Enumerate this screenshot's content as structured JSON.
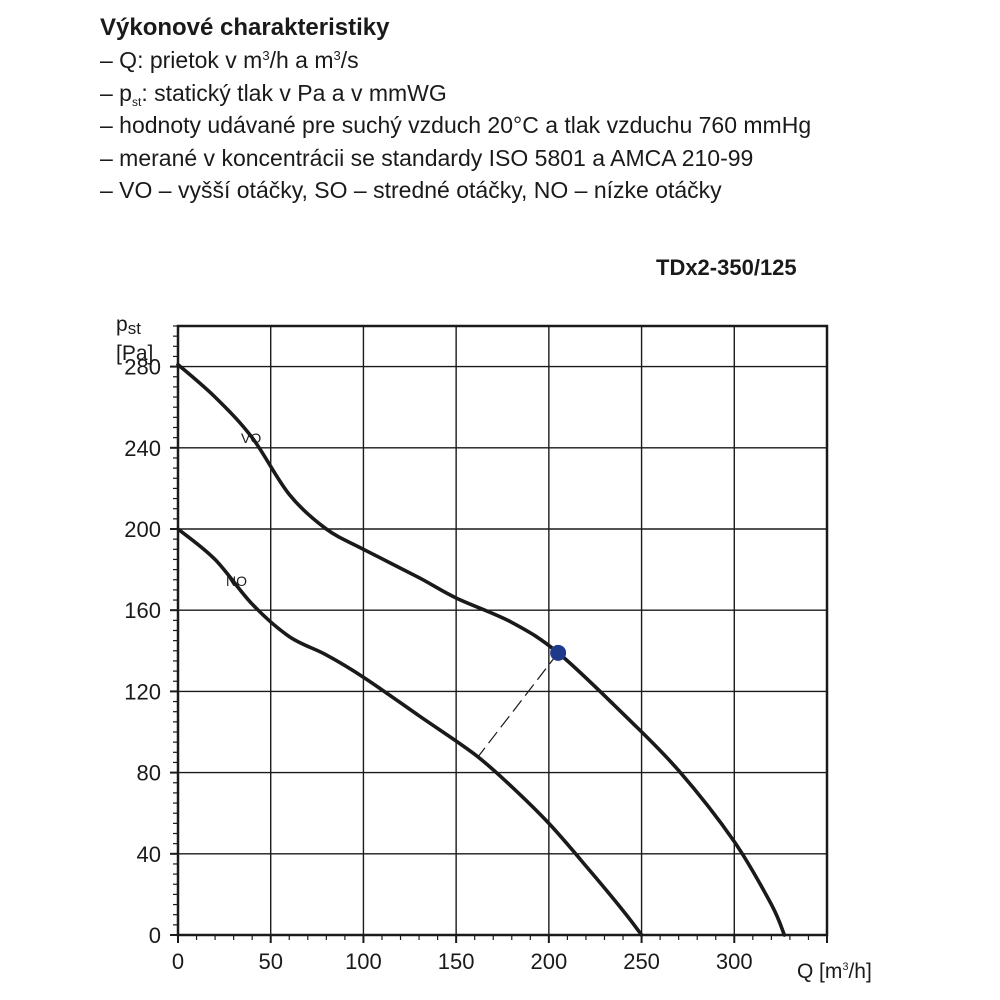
{
  "header": {
    "title": "Výkonové charakteristiky",
    "lines": [
      {
        "pre": "– Q: prietok v m",
        "sup1": "3",
        "mid": "/h a m",
        "sup2": "3",
        "post": "/s"
      },
      {
        "pre": "– p",
        "sub": "st",
        "post": ": statický tlak v Pa a v mmWG"
      },
      {
        "text": "– hodnoty udávané  pre suchý vzduch 20°C a tlak vzduchu 760 mmHg"
      },
      {
        "text": "– merané v koncentrácii se standardy ISO 5801 a AMCA 210-99"
      },
      {
        "text": "– VO – vyšší otáčky, SO – stredné otáčky, NO – nízke otáčky"
      }
    ]
  },
  "model": "TDx2-350/125",
  "chart_data": {
    "type": "line",
    "ylabel_symbol": "p",
    "ylabel_sub": "st",
    "ylabel_unit": "[Pa]",
    "xlabel_symbol": "Q",
    "xlabel_unit_pre": "[m",
    "xlabel_unit_sup": "3",
    "xlabel_unit_post": "/h]",
    "xlim": [
      0,
      350
    ],
    "ylim": [
      0,
      300
    ],
    "xticks": [
      0,
      50,
      100,
      150,
      200,
      250,
      300
    ],
    "yticks": [
      0,
      40,
      80,
      120,
      160,
      200,
      240,
      280
    ],
    "grid": true,
    "series": [
      {
        "name": "VO",
        "x": [
          0,
          20,
          40,
          60,
          80,
          100,
          130,
          150,
          180,
          205,
          240,
          270,
          300,
          320,
          327
        ],
        "y": [
          281,
          265,
          245,
          217,
          200,
          190,
          176,
          166,
          154,
          139,
          109,
          81,
          46,
          15,
          0
        ]
      },
      {
        "name": "NO",
        "x": [
          0,
          20,
          40,
          60,
          80,
          100,
          130,
          160,
          180,
          200,
          220,
          240,
          250
        ],
        "y": [
          200,
          185,
          163,
          147,
          138,
          127,
          108,
          89,
          73,
          55,
          34,
          12,
          0
        ]
      }
    ],
    "operating_point": {
      "x": 205,
      "y": 139,
      "color": "#1f3a8a"
    },
    "dashed_line": {
      "x1": 205,
      "y1": 139,
      "x2": 162,
      "y2": 88
    }
  }
}
